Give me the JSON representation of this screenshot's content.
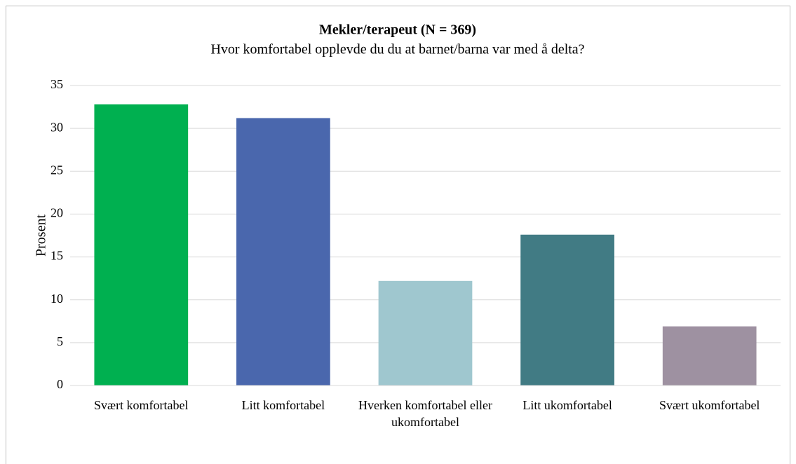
{
  "chart_data": {
    "type": "bar",
    "title": "Mekler/terapeut (N = 369)",
    "subtitle": "Hvor komfortabel opplevde du du at barnet/barna var med å delta?",
    "y_label": "Prosent",
    "categories": [
      "Svært komfortabel",
      "Litt komfortabel",
      "Hverken komfortabel eller ukomfortabel",
      "Litt ukomfortabel",
      "Svært ukomfortabel"
    ],
    "values": [
      32.8,
      31.2,
      12.2,
      17.6,
      6.9
    ],
    "colors": [
      "#00b050",
      "#4a67ad",
      "#9fc7cf",
      "#417b84",
      "#9e91a1"
    ],
    "ylim": [
      0,
      35
    ],
    "yticks": [
      0,
      5,
      10,
      15,
      20,
      25,
      30,
      35
    ],
    "grid": true
  }
}
